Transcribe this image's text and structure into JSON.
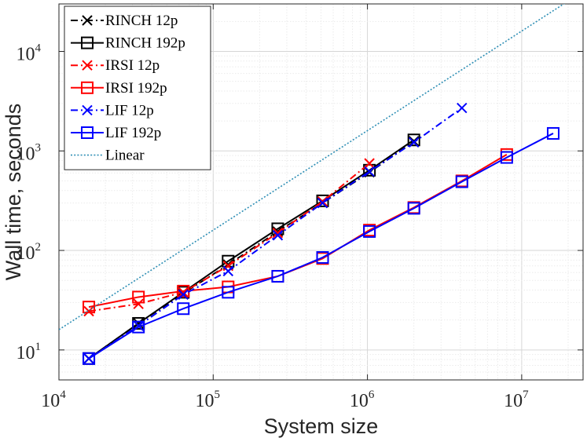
{
  "chart_data": {
    "type": "line",
    "title": "",
    "xlabel": "System size",
    "ylabel": "Wall time, seconds",
    "xscale": "log",
    "yscale": "log",
    "xlim": [
      10000,
      25000000
    ],
    "ylim": [
      5,
      30000
    ],
    "grid": true,
    "legend_position": "top-left",
    "x_ticks": [
      {
        "base": "10",
        "exp": "4"
      },
      {
        "base": "10",
        "exp": "5"
      },
      {
        "base": "10",
        "exp": "6"
      },
      {
        "base": "10",
        "exp": "7"
      }
    ],
    "y_ticks": [
      {
        "base": "10",
        "exp": "1"
      },
      {
        "base": "10",
        "exp": "2"
      },
      {
        "base": "10",
        "exp": "3"
      },
      {
        "base": "10",
        "exp": "4"
      }
    ],
    "series": [
      {
        "name": "RINCH 12p",
        "color": "#000000",
        "marker": "x",
        "dash": "dashdot",
        "x": [
          15625,
          32768,
          64000,
          125000,
          262144,
          512000,
          1030301,
          2000376
        ],
        "y": [
          8.2,
          18.5,
          37,
          72,
          155,
          300,
          610,
          1250
        ]
      },
      {
        "name": "RINCH 192p",
        "color": "#000000",
        "marker": "square",
        "dash": "solid",
        "x": [
          15625,
          32768,
          64000,
          125000,
          262144,
          512000,
          1030301,
          2000376
        ],
        "y": [
          8.2,
          18.5,
          38,
          78,
          165,
          315,
          640,
          1290
        ]
      },
      {
        "name": "IRSI 12p",
        "color": "#ff0000",
        "marker": "x",
        "dash": "dashdot",
        "x": [
          15625,
          32768,
          64000,
          125000,
          262144,
          512000,
          1030301
        ],
        "y": [
          24.5,
          29,
          38,
          70,
          150,
          310,
          750
        ]
      },
      {
        "name": "IRSI 192p",
        "color": "#ff0000",
        "marker": "square",
        "dash": "solid",
        "x": [
          15625,
          32768,
          64000,
          125000,
          262144,
          512000,
          1030301,
          2000376,
          4096000,
          8000000
        ],
        "y": [
          27,
          34,
          39,
          43,
          55,
          83,
          160,
          270,
          500,
          920
        ]
      },
      {
        "name": "LIF 12p",
        "color": "#0000ff",
        "marker": "x",
        "dash": "dashdot",
        "x": [
          15625,
          32768,
          64000,
          125000,
          262144,
          512000,
          1030301,
          2000376,
          4096000
        ],
        "y": [
          8.2,
          17.5,
          36,
          62,
          142,
          300,
          620,
          1220,
          2700
        ]
      },
      {
        "name": "LIF 192p",
        "color": "#0000ff",
        "marker": "square",
        "dash": "solid",
        "x": [
          15625,
          32768,
          64000,
          125000,
          262144,
          512000,
          1030301,
          2000376,
          4096000,
          8000000,
          16003008
        ],
        "y": [
          8.2,
          17,
          26,
          38,
          55,
          85,
          155,
          265,
          490,
          860,
          1500
        ]
      },
      {
        "name": "Linear",
        "color": "#2f8fb5",
        "marker": "none",
        "dash": "dotted",
        "x": [
          10000,
          22000000
        ],
        "y": [
          16,
          35200
        ]
      }
    ]
  }
}
